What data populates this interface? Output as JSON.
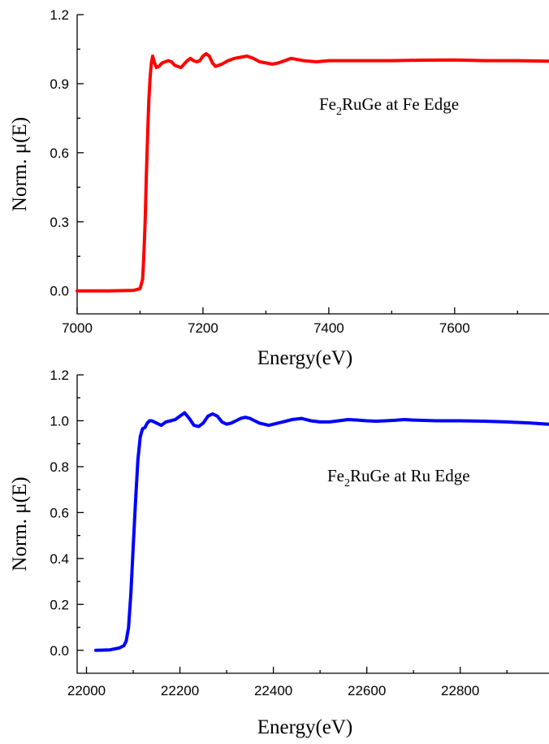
{
  "chart_data": [
    {
      "type": "line",
      "xlabel": "Energy(eV)",
      "ylabel": "Norm. μ(E)",
      "xlim": [
        7000,
        7750
      ],
      "ylim": [
        -0.1,
        1.2
      ],
      "xticks": [
        7000,
        7200,
        7400,
        7600
      ],
      "xtick_labels": [
        "7000",
        "7200",
        "7400",
        "7600"
      ],
      "yticks": [
        0.0,
        0.3,
        0.6,
        0.9,
        1.2
      ],
      "ytick_labels": [
        "0.0",
        "0.3",
        "0.6",
        "0.9",
        "1.2"
      ],
      "annotation": {
        "prefix": "Fe",
        "sub": "2",
        "suffix": "RuGe at Fe Edge"
      },
      "grid": false,
      "series": [
        {
          "color": "#ff0000",
          "x": [
            7000,
            7050,
            7090,
            7100,
            7104,
            7106,
            7108,
            7110,
            7112,
            7114,
            7116,
            7118,
            7120,
            7123,
            7126,
            7130,
            7135,
            7140,
            7145,
            7150,
            7155,
            7160,
            7165,
            7170,
            7175,
            7180,
            7185,
            7190,
            7195,
            7200,
            7205,
            7210,
            7215,
            7220,
            7225,
            7230,
            7240,
            7250,
            7260,
            7270,
            7280,
            7290,
            7300,
            7310,
            7320,
            7330,
            7340,
            7350,
            7360,
            7380,
            7400,
            7450,
            7500,
            7550,
            7600,
            7650,
            7700,
            7750
          ],
          "y": [
            0.0,
            0.0,
            0.002,
            0.01,
            0.05,
            0.15,
            0.3,
            0.5,
            0.68,
            0.83,
            0.93,
            0.99,
            1.02,
            0.99,
            0.97,
            0.975,
            0.99,
            0.995,
            1.0,
            0.995,
            0.98,
            0.975,
            0.97,
            0.985,
            1.0,
            1.01,
            1.0,
            0.995,
            1.0,
            1.02,
            1.03,
            1.02,
            0.99,
            0.975,
            0.98,
            0.985,
            1.0,
            1.01,
            1.015,
            1.02,
            1.01,
            0.995,
            0.99,
            0.985,
            0.99,
            1.0,
            1.01,
            1.005,
            1.0,
            0.995,
            1.0,
            1.0,
            1.0,
            1.002,
            1.003,
            1.0,
            1.0,
            0.998
          ]
        }
      ]
    },
    {
      "type": "line",
      "xlabel": "Energy(eV)",
      "ylabel": "Norm. μ(E)",
      "xlim": [
        21980,
        22990
      ],
      "ylim": [
        -0.1,
        1.2
      ],
      "xticks": [
        22000,
        22200,
        22400,
        22600,
        22800
      ],
      "xtick_labels": [
        "22000",
        "22200",
        "22400",
        "22600",
        "22800"
      ],
      "yticks": [
        0.0,
        0.2,
        0.4,
        0.6,
        0.8,
        1.0,
        1.2
      ],
      "ytick_labels": [
        "0.0",
        "0.2",
        "0.4",
        "0.6",
        "0.8",
        "1.0",
        "1.2"
      ],
      "annotation": {
        "prefix": "Fe",
        "sub": "2",
        "suffix": "RuGe at Ru Edge"
      },
      "grid": false,
      "series": [
        {
          "color": "#0000ff",
          "x": [
            22020,
            22050,
            22070,
            22080,
            22085,
            22090,
            22095,
            22100,
            22105,
            22110,
            22115,
            22120,
            22125,
            22130,
            22135,
            22140,
            22145,
            22150,
            22160,
            22170,
            22180,
            22190,
            22200,
            22210,
            22220,
            22230,
            22240,
            22250,
            22260,
            22270,
            22280,
            22290,
            22300,
            22310,
            22320,
            22330,
            22340,
            22350,
            22360,
            22370,
            22380,
            22390,
            22400,
            22420,
            22440,
            22460,
            22480,
            22500,
            22520,
            22540,
            22560,
            22580,
            22600,
            22620,
            22640,
            22660,
            22680,
            22700,
            22750,
            22800,
            22850,
            22900,
            22950,
            22990
          ],
          "y": [
            0.0,
            0.002,
            0.01,
            0.02,
            0.04,
            0.1,
            0.25,
            0.45,
            0.65,
            0.83,
            0.93,
            0.965,
            0.97,
            0.99,
            1.0,
            1.0,
            0.995,
            0.99,
            0.98,
            0.995,
            1.0,
            1.005,
            1.02,
            1.035,
            1.01,
            0.98,
            0.975,
            0.99,
            1.02,
            1.03,
            1.02,
            0.995,
            0.985,
            0.99,
            1.0,
            1.01,
            1.015,
            1.01,
            1.0,
            0.99,
            0.985,
            0.98,
            0.985,
            0.995,
            1.005,
            1.01,
            1.0,
            0.995,
            0.995,
            1.0,
            1.005,
            1.003,
            1.0,
            0.998,
            1.0,
            1.002,
            1.005,
            1.003,
            1.0,
            1.0,
            0.998,
            0.995,
            0.99,
            0.985
          ]
        }
      ]
    }
  ]
}
